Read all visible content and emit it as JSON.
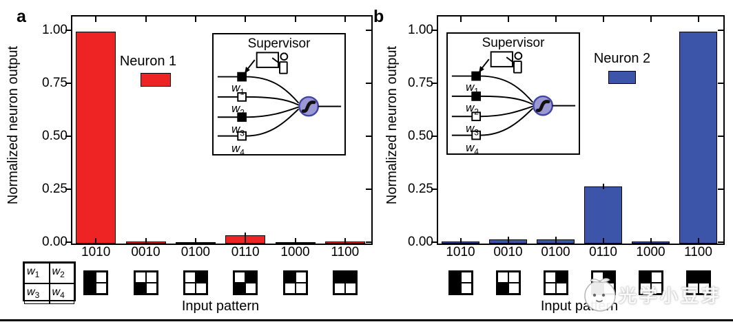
{
  "figure": {
    "background": "#ffffff",
    "bottom_rule_color": "#000000",
    "watermark": {
      "logo": "sprout-mascot-logo",
      "text": "光学小豆芽"
    },
    "weight_key": {
      "cells": [
        {
          "base": "w",
          "sub": "1"
        },
        {
          "base": "w",
          "sub": "2"
        },
        {
          "base": "w",
          "sub": "3"
        },
        {
          "base": "w",
          "sub": "4"
        }
      ]
    }
  },
  "chart_data": [
    {
      "type": "bar",
      "panel_label": "a",
      "series_name": "Neuron 1",
      "bar_color": "#ee2424",
      "ylabel": "Normalized neuron output",
      "xlabel": "Input pattern",
      "ylim": [
        0,
        1.07
      ],
      "grid": false,
      "yticks": {
        "values": [
          0,
          0.25,
          0.5,
          0.75,
          1.0
        ],
        "labels": [
          "0.00",
          "0.25",
          "0.50",
          "0.75",
          "1.00"
        ]
      },
      "categories": [
        "1010",
        "0010",
        "0100",
        "0110",
        "1000",
        "1100"
      ],
      "values": [
        1.0,
        0.01,
        0.005,
        0.04,
        0.003,
        0.01
      ],
      "input_patterns": [
        [
          1,
          0,
          1,
          0
        ],
        [
          0,
          0,
          1,
          0
        ],
        [
          0,
          1,
          0,
          0
        ],
        [
          0,
          1,
          1,
          0
        ],
        [
          1,
          0,
          0,
          0
        ],
        [
          1,
          1,
          0,
          0
        ]
      ],
      "legend": {
        "label": "Neuron 1",
        "position": "left-of-inset"
      },
      "inset": {
        "title": "Supervisor",
        "icon": "teacher-at-whiteboard",
        "position": "upper-right",
        "neuron_symbol": "sigmoid",
        "neuron_fill": "#9a99d5",
        "neuron_stroke": "#4444a6",
        "weights": [
          {
            "base": "w",
            "sub": "1",
            "filled": true
          },
          {
            "base": "w",
            "sub": "2",
            "filled": false
          },
          {
            "base": "w",
            "sub": "3",
            "filled": true
          },
          {
            "base": "w",
            "sub": "4",
            "filled": false
          }
        ]
      }
    },
    {
      "type": "bar",
      "panel_label": "b",
      "series_name": "Neuron 2",
      "bar_color": "#3d55a8",
      "ylabel": "Normalized neuron output",
      "xlabel": "Input pattern",
      "ylim": [
        0,
        1.07
      ],
      "grid": false,
      "yticks": {
        "values": [
          0,
          0.25,
          0.5,
          0.75,
          1.0
        ],
        "labels": [
          "0.00",
          "0.25",
          "0.50",
          "0.75",
          "1.00"
        ]
      },
      "categories": [
        "1010",
        "0010",
        "0100",
        "0110",
        "1000",
        "1100"
      ],
      "values": [
        0.01,
        0.02,
        0.02,
        0.27,
        0.01,
        1.0
      ],
      "input_patterns": [
        [
          1,
          0,
          1,
          0
        ],
        [
          0,
          0,
          1,
          0
        ],
        [
          0,
          1,
          0,
          0
        ],
        [
          0,
          1,
          1,
          0
        ],
        [
          1,
          0,
          0,
          0
        ],
        [
          1,
          1,
          0,
          0
        ]
      ],
      "legend": {
        "label": "Neuron 2",
        "position": "right-of-inset"
      },
      "inset": {
        "title": "Supervisor",
        "icon": "teacher-at-whiteboard",
        "position": "upper-left",
        "neuron_symbol": "sigmoid",
        "neuron_fill": "#9a99d5",
        "neuron_stroke": "#4444a6",
        "weights": [
          {
            "base": "w",
            "sub": "1",
            "filled": true
          },
          {
            "base": "w",
            "sub": "2",
            "filled": true
          },
          {
            "base": "w",
            "sub": "3",
            "filled": false
          },
          {
            "base": "w",
            "sub": "4",
            "filled": false
          }
        ]
      }
    }
  ]
}
